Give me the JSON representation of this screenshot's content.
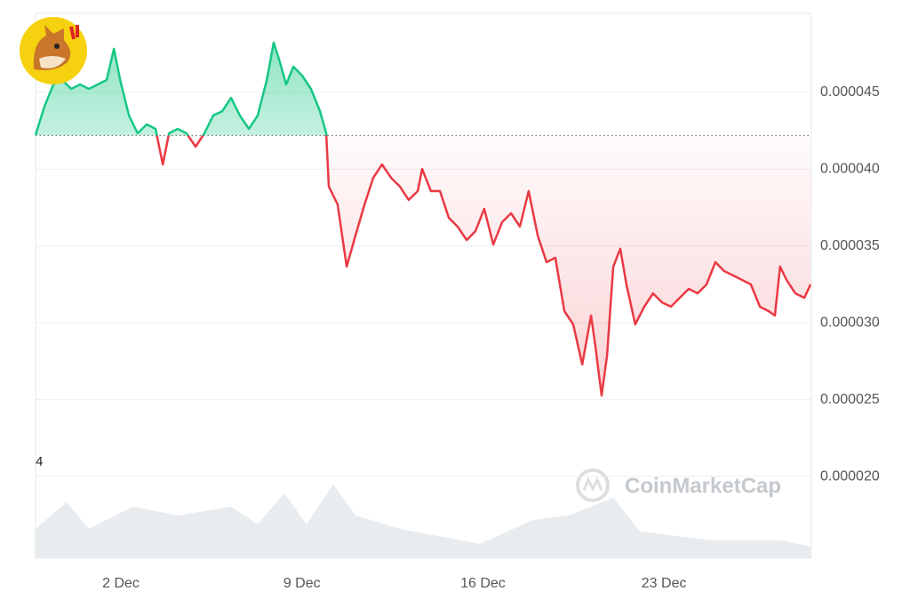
{
  "chart_data": {
    "type": "line",
    "x": [
      -1.3,
      -0.96,
      -0.61,
      -0.27,
      0.08,
      0.42,
      0.76,
      1.11,
      1.45,
      1.73,
      1.97,
      2.31,
      2.65,
      3.0,
      3.34,
      3.62,
      3.86,
      4.2,
      4.54,
      4.89,
      5.23,
      5.57,
      5.92,
      6.26,
      6.6,
      6.95,
      7.29,
      7.64,
      7.91,
      8.15,
      8.39,
      8.67,
      9.01,
      9.35,
      9.7,
      9.94,
      10.04,
      10.38,
      10.73,
      11.07,
      11.42,
      11.76,
      12.1,
      12.45,
      12.79,
      13.13,
      13.48,
      13.65,
      13.99,
      14.34,
      14.68,
      15.02,
      15.37,
      15.71,
      16.05,
      16.4,
      16.74,
      17.09,
      17.43,
      17.77,
      18.12,
      18.46,
      18.8,
      19.15,
      19.49,
      19.84,
      20.18,
      20.35,
      20.59,
      20.8,
      21.04,
      21.31,
      21.55,
      21.89,
      22.24,
      22.58,
      22.92,
      23.27,
      23.61,
      23.96,
      24.3,
      24.65,
      24.99,
      25.33,
      25.68,
      26.02,
      26.36,
      26.71,
      27.05,
      27.29,
      27.49,
      27.74,
      28.08,
      28.43,
      28.67
    ],
    "values": [
      4.222e-05,
      4.407e-05,
      4.552e-05,
      4.581e-05,
      4.523e-05,
      4.552e-05,
      4.523e-05,
      4.552e-05,
      4.581e-05,
      4.784e-05,
      4.581e-05,
      4.35e-05,
      4.234e-05,
      4.292e-05,
      4.263e-05,
      4.031e-05,
      4.234e-05,
      4.263e-05,
      4.234e-05,
      4.147e-05,
      4.234e-05,
      4.35e-05,
      4.378e-05,
      4.465e-05,
      4.35e-05,
      4.263e-05,
      4.35e-05,
      4.581e-05,
      4.824e-05,
      4.697e-05,
      4.552e-05,
      4.668e-05,
      4.61e-05,
      4.523e-05,
      4.378e-05,
      4.234e-05,
      3.887e-05,
      3.771e-05,
      3.366e-05,
      3.568e-05,
      3.771e-05,
      3.944e-05,
      4.031e-05,
      3.944e-05,
      3.887e-05,
      3.8e-05,
      3.858e-05,
      4.002e-05,
      3.858e-05,
      3.858e-05,
      3.684e-05,
      3.626e-05,
      3.539e-05,
      3.597e-05,
      3.742e-05,
      3.51e-05,
      3.655e-05,
      3.713e-05,
      3.626e-05,
      3.858e-05,
      3.568e-05,
      3.395e-05,
      3.424e-05,
      3.076e-05,
      2.99e-05,
      2.729e-05,
      3.047e-05,
      2.845e-05,
      2.527e-05,
      2.787e-05,
      3.366e-05,
      3.482e-05,
      3.25e-05,
      2.99e-05,
      3.105e-05,
      3.192e-05,
      3.134e-05,
      3.105e-05,
      3.163e-05,
      3.221e-05,
      3.192e-05,
      3.25e-05,
      3.395e-05,
      3.337e-05,
      3.308e-05,
      3.279e-05,
      3.25e-05,
      3.105e-05,
      3.076e-05,
      3.047e-05,
      3.366e-05,
      3.279e-05,
      3.192e-05,
      3.163e-05,
      3.25e-05
    ],
    "reference_value": 4.22e-05,
    "up_color": "#16c784",
    "down_color": "#ea3943",
    "volume": {
      "x": [
        -1.3,
        -0.1,
        0.76,
        2.48,
        4.2,
        6.26,
        7.29,
        8.32,
        9.18,
        10.21,
        11.07,
        12.79,
        15.88,
        17.94,
        19.32,
        21.04,
        22.07,
        24.82,
        27.57,
        28.67
      ],
      "values": [
        33,
        63,
        33,
        58,
        48,
        58,
        38,
        73,
        38,
        83,
        48,
        33,
        16,
        43,
        48,
        68,
        30,
        20,
        20,
        13
      ],
      "color": "#e8ecef"
    },
    "volume_label": "4",
    "watermark": "CoinMarketCap",
    "xlim": [
      -1.3,
      28.7
    ],
    "xticks": [
      {
        "value": 2,
        "label": "2 Dec"
      },
      {
        "value": 9,
        "label": "9 Dec"
      },
      {
        "value": 16,
        "label": "16 Dec"
      },
      {
        "value": 23,
        "label": "23 Dec"
      }
    ],
    "ylim": [
      1.468e-05,
      5.015e-05
    ],
    "yticks": [
      {
        "value": 2e-05,
        "label": "0.000020"
      },
      {
        "value": 2.5e-05,
        "label": "0.000025"
      },
      {
        "value": 3e-05,
        "label": "0.000030"
      },
      {
        "value": 3.5e-05,
        "label": "0.000035"
      },
      {
        "value": 4e-05,
        "label": "0.000040"
      },
      {
        "value": 4.5e-05,
        "label": "0.000045"
      }
    ],
    "grid": true
  }
}
